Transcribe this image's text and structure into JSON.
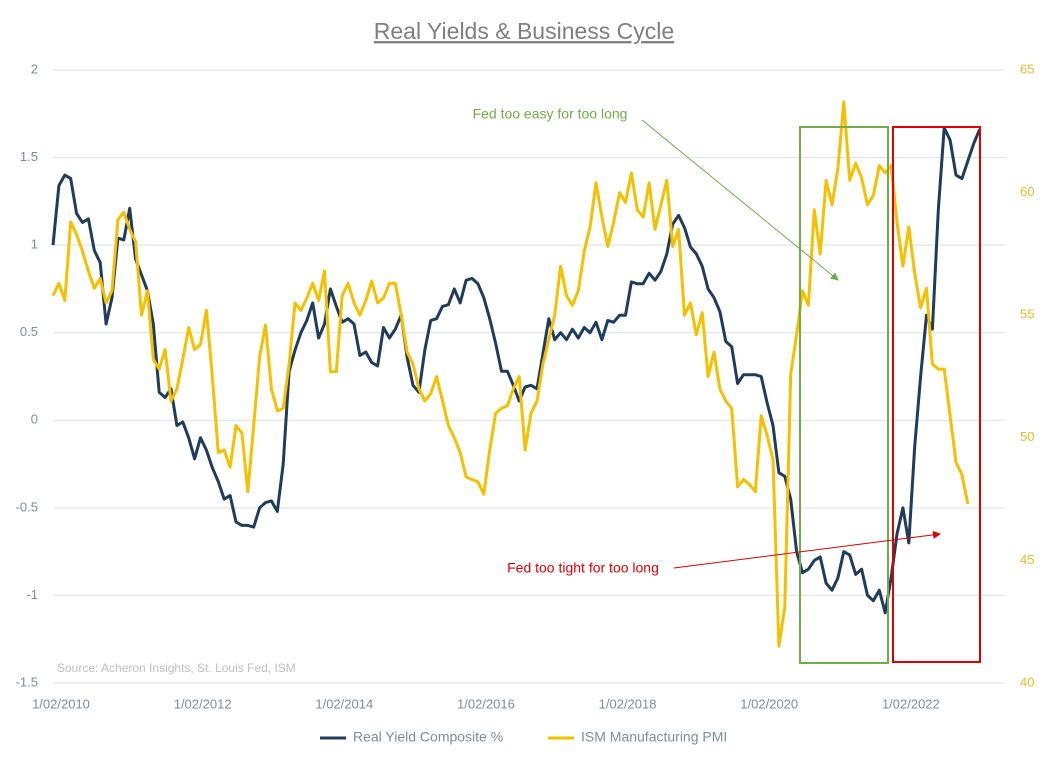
{
  "chart_data": {
    "type": "line",
    "title": "Real Yields & Business Cycle",
    "source": "Source: Acheron Insights, St. Louis Fed, ISM",
    "annotations": [
      "Fed too easy for too long",
      "Fed too tight for too long"
    ],
    "x": [
      "2010-01",
      "2010-02",
      "2010-03",
      "2010-04",
      "2010-05",
      "2010-06",
      "2010-07",
      "2010-08",
      "2010-09",
      "2010-10",
      "2010-11",
      "2010-12",
      "2011-01",
      "2011-02",
      "2011-03",
      "2011-04",
      "2011-05",
      "2011-06",
      "2011-07",
      "2011-08",
      "2011-09",
      "2011-10",
      "2011-11",
      "2011-12",
      "2012-01",
      "2012-02",
      "2012-03",
      "2012-04",
      "2012-05",
      "2012-06",
      "2012-07",
      "2012-08",
      "2012-09",
      "2012-10",
      "2012-11",
      "2012-12",
      "2013-01",
      "2013-02",
      "2013-03",
      "2013-04",
      "2013-05",
      "2013-06",
      "2013-07",
      "2013-08",
      "2013-09",
      "2013-10",
      "2013-11",
      "2013-12",
      "2014-01",
      "2014-02",
      "2014-03",
      "2014-04",
      "2014-05",
      "2014-06",
      "2014-07",
      "2014-08",
      "2014-09",
      "2014-10",
      "2014-11",
      "2014-12",
      "2015-01",
      "2015-02",
      "2015-03",
      "2015-04",
      "2015-05",
      "2015-06",
      "2015-07",
      "2015-08",
      "2015-09",
      "2015-10",
      "2015-11",
      "2015-12",
      "2016-01",
      "2016-02",
      "2016-03",
      "2016-04",
      "2016-05",
      "2016-06",
      "2016-07",
      "2016-08",
      "2016-09",
      "2016-10",
      "2016-11",
      "2016-12",
      "2017-01",
      "2017-02",
      "2017-03",
      "2017-04",
      "2017-05",
      "2017-06",
      "2017-07",
      "2017-08",
      "2017-09",
      "2017-10",
      "2017-11",
      "2017-12",
      "2018-01",
      "2018-02",
      "2018-03",
      "2018-04",
      "2018-05",
      "2018-06",
      "2018-07",
      "2018-08",
      "2018-09",
      "2018-10",
      "2018-11",
      "2018-12",
      "2019-01",
      "2019-02",
      "2019-03",
      "2019-04",
      "2019-05",
      "2019-06",
      "2019-07",
      "2019-08",
      "2019-09",
      "2019-10",
      "2019-11",
      "2019-12",
      "2020-01",
      "2020-02",
      "2020-03",
      "2020-04",
      "2020-05",
      "2020-06",
      "2020-07",
      "2020-08",
      "2020-09",
      "2020-10",
      "2020-11",
      "2020-12",
      "2021-01",
      "2021-02",
      "2021-03",
      "2021-04",
      "2021-05",
      "2021-06",
      "2021-07",
      "2021-08",
      "2021-09",
      "2021-10",
      "2021-11",
      "2021-12",
      "2022-01",
      "2022-02",
      "2022-03",
      "2022-04",
      "2022-05",
      "2022-06",
      "2022-07",
      "2022-08",
      "2022-09",
      "2022-10",
      "2022-11",
      "2022-12",
      "2023-01",
      "2023-02"
    ],
    "series": [
      {
        "name": "Real Yield Composite %",
        "color": "#203c5c",
        "values": [
          1.0,
          1.34,
          1.4,
          1.38,
          1.18,
          1.13,
          1.15,
          0.97,
          0.9,
          0.55,
          0.7,
          1.04,
          1.03,
          1.21,
          0.92,
          0.83,
          0.74,
          0.55,
          0.16,
          0.13,
          0.18,
          -0.03,
          -0.01,
          -0.1,
          -0.22,
          -0.1,
          -0.17,
          -0.27,
          -0.35,
          -0.45,
          -0.43,
          -0.58,
          -0.6,
          -0.6,
          -0.61,
          -0.5,
          -0.47,
          -0.46,
          -0.52,
          -0.25,
          0.28,
          0.4,
          0.5,
          0.57,
          0.67,
          0.47,
          0.55,
          0.75,
          0.65,
          0.56,
          0.58,
          0.55,
          0.37,
          0.39,
          0.33,
          0.31,
          0.53,
          0.47,
          0.52,
          0.6,
          0.36,
          0.2,
          0.16,
          0.4,
          0.57,
          0.58,
          0.65,
          0.66,
          0.75,
          0.67,
          0.8,
          0.81,
          0.78,
          0.7,
          0.58,
          0.44,
          0.28,
          0.28,
          0.2,
          0.11,
          0.19,
          0.2,
          0.18,
          0.38,
          0.58,
          0.46,
          0.5,
          0.46,
          0.52,
          0.47,
          0.53,
          0.5,
          0.56,
          0.46,
          0.57,
          0.56,
          0.6,
          0.6,
          0.79,
          0.78,
          0.78,
          0.84,
          0.8,
          0.85,
          0.95,
          1.12,
          1.17,
          1.1,
          0.99,
          0.95,
          0.88,
          0.75,
          0.7,
          0.62,
          0.45,
          0.42,
          0.21,
          0.26,
          0.26,
          0.26,
          0.25,
          0.1,
          -0.03,
          -0.3,
          -0.32,
          -0.45,
          -0.75,
          -0.87,
          -0.85,
          -0.8,
          -0.78,
          -0.93,
          -0.97,
          -0.9,
          -0.75,
          -0.77,
          -0.88,
          -0.85,
          -1.0,
          -1.03,
          -0.97,
          -1.1,
          -0.9,
          -0.65,
          -0.5,
          -0.7,
          -0.15,
          0.25,
          0.6,
          0.52,
          1.2,
          1.67,
          1.6,
          1.4,
          1.38,
          1.48,
          1.58,
          1.66
        ]
      },
      {
        "name": "ISM Manufacturing PMI",
        "color": "#f5c000",
        "axis": "y2",
        "values": [
          55.8,
          56.3,
          55.6,
          58.8,
          58.3,
          57.6,
          56.8,
          56.1,
          56.5,
          55.5,
          56.0,
          58.9,
          59.2,
          58.5,
          58.0,
          55.0,
          56.0,
          53.2,
          52.8,
          53.6,
          51.5,
          52.0,
          53.2,
          54.5,
          53.6,
          53.8,
          55.2,
          52.5,
          49.4,
          49.5,
          48.8,
          50.5,
          50.2,
          47.8,
          50.5,
          53.3,
          54.6,
          52.0,
          51.1,
          51.2,
          53.0,
          55.5,
          55.2,
          55.7,
          56.3,
          55.6,
          56.8,
          52.7,
          52.7,
          55.8,
          56.3,
          55.5,
          55.0,
          55.6,
          56.4,
          55.5,
          55.7,
          56.3,
          56.3,
          55.0,
          53.5,
          53.0,
          52.0,
          51.5,
          51.8,
          52.5,
          51.5,
          50.5,
          50.0,
          49.4,
          48.4,
          48.3,
          48.2,
          47.7,
          49.5,
          51.0,
          51.2,
          51.3,
          52.0,
          52.5,
          49.5,
          51.0,
          51.5,
          53.0,
          54.0,
          55.0,
          57.0,
          55.8,
          55.4,
          56.0,
          57.6,
          58.6,
          60.4,
          59.0,
          57.8,
          58.8,
          60.0,
          59.6,
          60.8,
          59.3,
          59.0,
          60.4,
          58.5,
          59.5,
          60.5,
          57.8,
          58.5,
          55.0,
          55.5,
          54.2,
          55.1,
          52.5,
          53.5,
          52.0,
          51.5,
          51.2,
          48.0,
          48.3,
          48.1,
          47.8,
          50.9,
          50.1,
          49.1,
          41.5,
          43.1,
          52.6,
          54.2,
          56.0,
          55.4,
          59.3,
          57.5,
          60.5,
          59.5,
          61.0,
          63.7,
          60.5,
          61.2,
          60.6,
          59.5,
          59.9,
          61.1,
          60.8,
          61.1,
          58.8,
          57.0,
          58.6,
          56.7,
          55.3,
          56.1,
          53.0,
          52.8,
          52.8,
          50.9,
          49.0,
          48.5,
          47.3,
          null,
          null
        ]
      }
    ],
    "xlim": [
      "2010-01",
      "2023-08"
    ],
    "xticks": [
      {
        "value": "2010-01",
        "label": "1/02/2010"
      },
      {
        "value": "2012-01",
        "label": "1/02/2012"
      },
      {
        "value": "2014-01",
        "label": "1/02/2014"
      },
      {
        "value": "2016-01",
        "label": "1/02/2016"
      },
      {
        "value": "2018-01",
        "label": "1/02/2018"
      },
      {
        "value": "2020-01",
        "label": "1/02/2020"
      },
      {
        "value": "2022-01",
        "label": "1/02/2022"
      }
    ],
    "ylim": [
      -1.5,
      2
    ],
    "yticks": [
      2,
      1.5,
      1,
      0.5,
      0,
      -0.5,
      -1,
      -1.5
    ],
    "y2lim": [
      40,
      65
    ],
    "y2ticks": [
      65,
      60,
      55,
      50,
      45,
      40
    ],
    "grid": true,
    "legend": "bottom"
  }
}
